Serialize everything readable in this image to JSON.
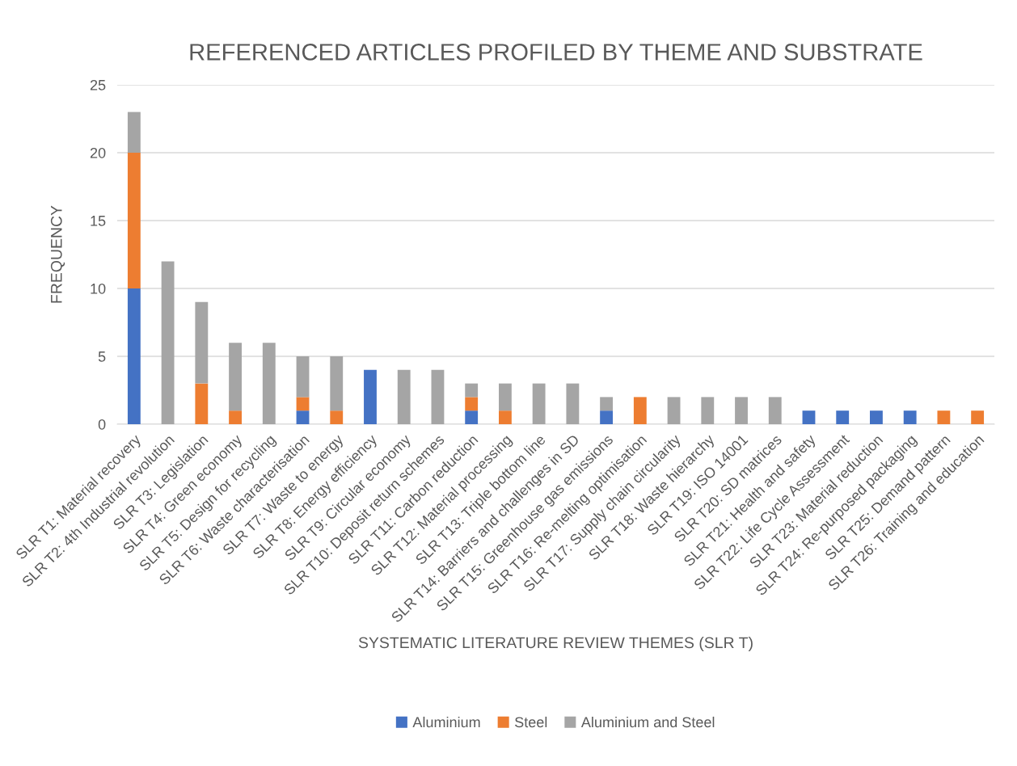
{
  "chart_data": {
    "type": "bar",
    "title": "REFERENCED ARTICLES PROFILED BY THEME AND SUBSTRATE",
    "xlabel": "SYSTEMATIC LITERATURE REVIEW THEMES (SLR T)",
    "ylabel": "FREQUENCY",
    "categories": [
      "SLR T1: Material recovery",
      "SLR T2: 4th Industrial revolution",
      "SLR T3: Legislation",
      "SLR T4: Green economy",
      "SLR T5: Design for recycling",
      "SLR T6: Waste characterisation",
      "SLR T7: Waste to energy",
      "SLR T8: Energy efficiency",
      "SLR T9: Circular economy",
      "SLR T10: Deposit return schemes",
      "SLR T11: Carbon reduction",
      "SLR T12: Material processing",
      "SLR T13: Triple bottom line",
      "SLR T14: Barriers and challenges in SD",
      "SLR T15: Greenhouse gas emissions",
      "SLR T16: Re-melting optimisation",
      "SLR T17: Supply chain circularity",
      "SLR T18: Waste hierarchy",
      "SLR T19: ISO 14001",
      "SLR T20: SD matrices",
      "SLR T21: Health and safety",
      "SLR T22: Life Cycle Assessment",
      "SLR T23: Material reduction",
      "SLR T24: Re-purposed packaging",
      "SLR T25: Demand pattern",
      "SLR T26: Training and education"
    ],
    "stacked": true,
    "series": [
      {
        "name": "Aluminium",
        "color": "#4472c4",
        "values": [
          10,
          0,
          0,
          0,
          0,
          1,
          0,
          4,
          0,
          0,
          1,
          0,
          0,
          0,
          1,
          0,
          0,
          0,
          0,
          0,
          1,
          1,
          1,
          1,
          0,
          0
        ]
      },
      {
        "name": "Steel",
        "color": "#ed7d31",
        "values": [
          10,
          0,
          3,
          1,
          0,
          1,
          1,
          0,
          0,
          0,
          1,
          1,
          0,
          0,
          0,
          2,
          0,
          0,
          0,
          0,
          0,
          0,
          0,
          0,
          1,
          1
        ]
      },
      {
        "name": "Aluminium and Steel",
        "color": "#a5a5a5",
        "values": [
          3,
          12,
          6,
          5,
          6,
          3,
          4,
          0,
          4,
          4,
          1,
          2,
          3,
          3,
          1,
          0,
          2,
          2,
          2,
          2,
          0,
          0,
          0,
          0,
          0,
          0
        ]
      }
    ],
    "ylim": [
      0,
      25
    ],
    "yticks": [
      0,
      5,
      10,
      15,
      20,
      25
    ],
    "grid": "y",
    "legend": "bottom"
  }
}
